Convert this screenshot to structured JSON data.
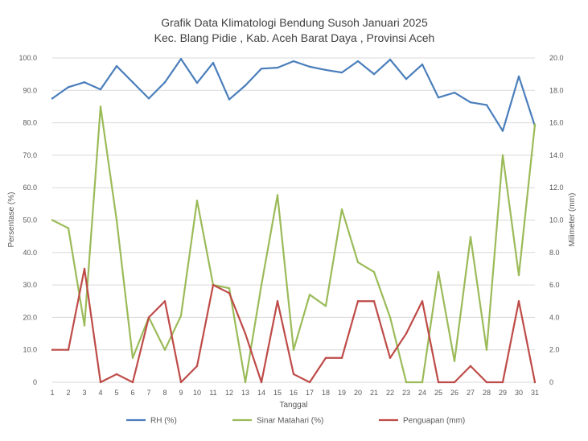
{
  "chart_data": {
    "type": "line",
    "title_line1": "Grafik Data Klimatologi Bendung Susoh Januari 2025",
    "title_line2": "Kec. Blang Pidie , Kab. Aceh Barat Daya  , Provinsi  Aceh",
    "xlabel": "Tanggal",
    "ylabel_left": "Persentase (%)",
    "ylabel_right": "Milimeter (mm)",
    "ylim_left": [
      0,
      100
    ],
    "ylim_right": [
      0,
      20
    ],
    "yticks_left": [
      "0",
      "10.0",
      "20.0",
      "30.0",
      "40.0",
      "50.0",
      "60.0",
      "70.0",
      "80.0",
      "90.0",
      "100.0"
    ],
    "yticks_right": [
      "0",
      "2.0",
      "4.0",
      "6.0",
      "8.0",
      "10.0",
      "12.0",
      "14.0",
      "16.0",
      "18.0",
      "20.0"
    ],
    "categories": [
      "1",
      "2",
      "3",
      "4",
      "5",
      "6",
      "7",
      "8",
      "9",
      "10",
      "11",
      "12",
      "13",
      "14",
      "15",
      "16",
      "17",
      "18",
      "19",
      "20",
      "21",
      "22",
      "23",
      "24",
      "25",
      "26",
      "27",
      "28",
      "29",
      "30",
      "31"
    ],
    "grid": true,
    "legend_position": "bottom",
    "series": [
      {
        "name": "RH (%)",
        "axis": "left",
        "color": "#4a7ebb",
        "values": [
          87.5,
          91,
          92.5,
          90.3,
          97.5,
          92.5,
          87.5,
          92.5,
          99.7,
          92.3,
          98.5,
          87.2,
          91.5,
          96.7,
          97,
          99,
          97.3,
          96.3,
          95.5,
          99,
          95,
          99.5,
          93.5,
          98,
          87.8,
          89.3,
          86.3,
          85.5,
          77.5,
          94.3,
          79
        ]
      },
      {
        "name": "Sinar Matahari (%)",
        "axis": "left",
        "color": "#9bbb59",
        "values": [
          50,
          47.5,
          17.5,
          85,
          50,
          7.5,
          20,
          10,
          20.5,
          56,
          30,
          29,
          0,
          30,
          57.7,
          10,
          27,
          23.5,
          53.3,
          37,
          34,
          20,
          0,
          0,
          34,
          6.5,
          44.8,
          10,
          70,
          33,
          79.5
        ]
      },
      {
        "name": "Penguapan (mm)",
        "axis": "right",
        "color": "#be4b48",
        "values": [
          2,
          2,
          7,
          0,
          0.5,
          0,
          4,
          5,
          0,
          1,
          6,
          5.5,
          3,
          0,
          5,
          0.5,
          0,
          1.5,
          1.5,
          5,
          5,
          1.5,
          3,
          5,
          0,
          0,
          1,
          0,
          0,
          5,
          0
        ]
      }
    ]
  }
}
